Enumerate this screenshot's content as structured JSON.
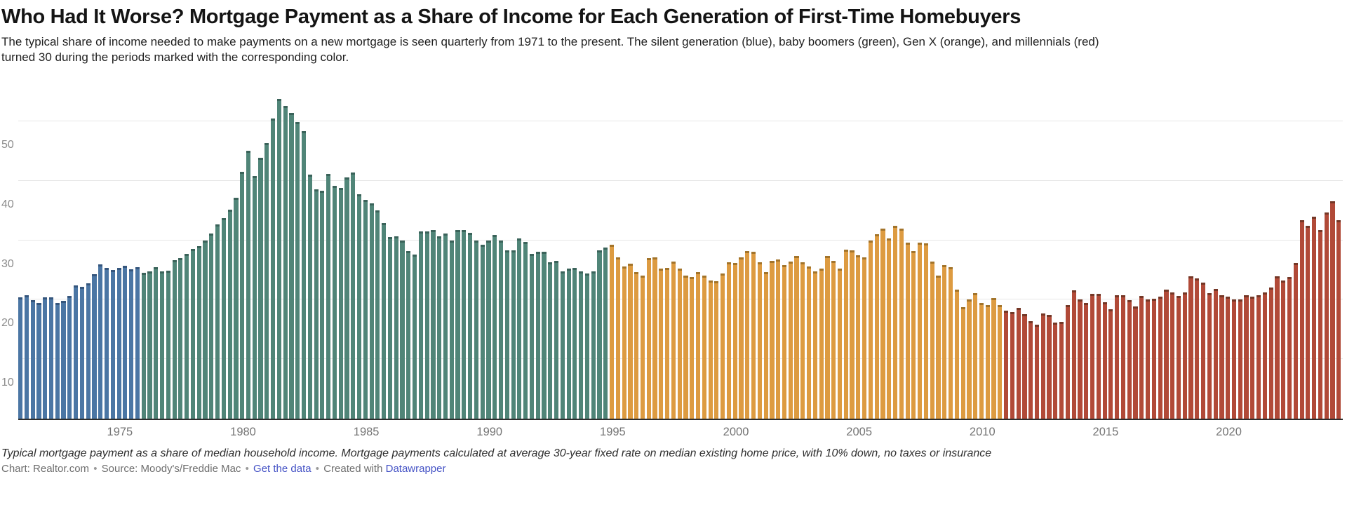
{
  "header": {
    "title": "Who Had It Worse? Mortgage Payment as a Share of Income for Each Generation of First-Time Homebuyers",
    "subtitle_lines": [
      "The typical share of income needed to make payments on a new mortgage is seen quarterly from 1971 to the present. The silent generation (blue), baby boomers (green), Gen X (orange), and millennials (red)",
      "turned 30 during the periods marked with the corresponding color."
    ]
  },
  "chart_data": {
    "type": "bar",
    "title": "Typical mortgage payment as a share of median household income",
    "frequency": "quarterly",
    "x_start_year": 1971,
    "x_start": "1971 Q1",
    "x_end": "2024 Q3",
    "ylim": [
      0,
      58
    ],
    "yticks": [
      10,
      20,
      30,
      40,
      50
    ],
    "xticks": [
      1975,
      1980,
      1985,
      1990,
      1995,
      2000,
      2005,
      2010,
      2015,
      2020
    ],
    "grid": true,
    "legend_position": "none (described in subtitle)",
    "series": [
      {
        "name": "Silent generation turned 30",
        "color_name": "blue",
        "color": "#4b76a4",
        "cap_color": "#35567d",
        "start": "1971 Q1",
        "values": [
          20.4,
          20.7,
          19.9,
          19.5,
          20.4,
          20.4,
          19.5,
          19.8,
          20.6,
          22.4,
          22.2,
          22.8,
          24.3,
          25.9,
          25.3,
          25.0,
          25.4,
          25.7,
          25.1,
          25.5
        ]
      },
      {
        "name": "Baby boomers turned 30",
        "color_name": "green",
        "color": "#508578",
        "cap_color": "#3a635a",
        "start": "1976 Q1",
        "values": [
          24.5,
          24.8,
          25.5,
          24.7,
          24.9,
          26.6,
          27.0,
          27.7,
          28.5,
          29.0,
          30.0,
          31.1,
          32.6,
          33.7,
          35.1,
          37.1,
          41.5,
          45.0,
          40.8,
          43.9,
          46.3,
          50.5,
          53.8,
          52.6,
          51.4,
          49.9,
          48.3,
          41.0,
          38.6,
          38.3,
          41.2,
          39.1,
          38.8,
          40.6,
          41.4,
          37.7,
          36.8,
          36.2,
          35.0,
          32.9,
          30.5,
          30.6,
          29.9,
          28.2,
          27.6,
          31.5,
          31.5,
          31.7,
          30.6,
          31.1,
          30.0,
          31.7,
          31.7,
          31.3,
          30.0,
          29.2,
          30.0,
          30.9,
          29.9,
          28.3,
          28.3,
          30.3,
          29.7,
          27.7,
          28.0,
          28.1,
          26.3,
          26.5,
          24.7,
          25.2,
          25.3,
          24.7,
          24.4,
          24.7,
          28.3,
          28.8
        ]
      },
      {
        "name": "Gen X turned 30",
        "color_name": "orange",
        "color": "#dd9b41",
        "cap_color": "#a3742a",
        "start": "1995 Q1",
        "values": [
          29.2,
          27.1,
          25.6,
          26.1,
          24.6,
          24.1,
          27.0,
          27.1,
          25.2,
          25.3,
          26.4,
          25.2,
          24.0,
          23.8,
          24.6,
          24.0,
          23.2,
          23.1,
          24.4,
          26.3,
          26.2,
          27.1,
          28.2,
          28.1,
          26.3,
          24.6,
          26.5,
          26.8,
          25.8,
          26.4,
          27.4,
          26.3,
          25.6,
          24.7,
          25.2,
          27.4,
          26.5,
          25.2,
          28.4,
          28.3,
          27.5,
          27.1,
          29.9,
          31.0,
          31.9,
          30.3,
          32.4,
          31.9,
          29.6,
          28.2,
          29.6,
          29.5,
          26.4,
          24.1,
          25.8,
          25.5,
          21.7,
          18.8,
          20.0,
          21.1,
          19.4,
          19.1,
          20.3,
          19.1
        ]
      },
      {
        "name": "Millennials turned 30",
        "color_name": "red",
        "color": "#b14a38",
        "cap_color": "#753726",
        "start": "2011 Q1",
        "values": [
          18.2,
          17.9,
          18.6,
          17.6,
          16.4,
          15.8,
          17.7,
          17.4,
          16.2,
          16.3,
          19.1,
          21.6,
          20.1,
          19.4,
          21.0,
          21.0,
          19.6,
          18.4,
          20.7,
          20.8,
          19.9,
          18.9,
          20.6,
          20.0,
          20.2,
          20.5,
          21.7,
          21.2,
          20.6,
          21.2,
          23.9,
          23.6,
          22.9,
          21.1,
          21.8,
          20.7,
          20.5,
          20.1,
          20.0,
          20.8,
          20.5,
          20.8,
          21.2,
          22.0,
          23.9,
          23.2,
          23.8,
          26.2,
          33.4,
          32.4,
          33.9,
          31.7,
          34.7,
          36.5,
          33.4
        ]
      }
    ]
  },
  "footer": {
    "note": "Typical mortgage payment as a share of median household income. Mortgage payments calculated at average 30-year fixed rate on median existing home price, with 10% down, no taxes or insurance",
    "chart_credit": "Chart: Realtor.com",
    "source_credit": "Source: Moody's/Freddie Mac",
    "get_data_label": "Get the data",
    "created_with_label": "Created with",
    "datawrapper_label": "Datawrapper",
    "separator": "•",
    "link_color": "#4452c5"
  },
  "colors": {
    "background": "#ffffff",
    "gridline": "#e6e6e6",
    "axis_line": "#2e2e2e",
    "axis_tick_text": "#757575",
    "y_tick_text": "#8c8c8c"
  }
}
